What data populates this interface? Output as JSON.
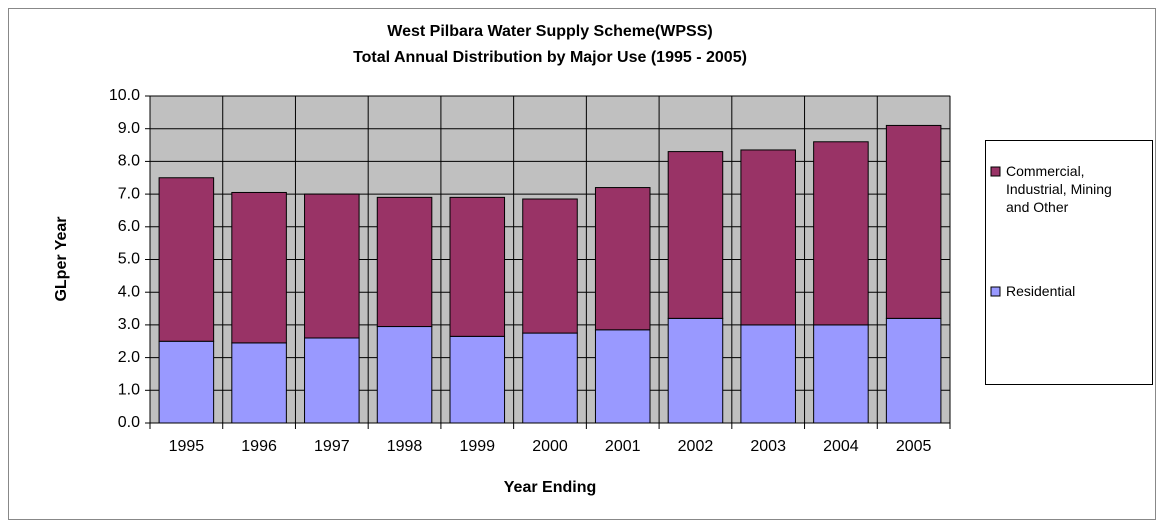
{
  "chart_data": {
    "type": "stacked_bar",
    "title": "West Pilbara Water Supply Scheme(WPSS)",
    "subtitle": "Total Annual Distribution by Major Use (1995 - 2005)",
    "x_label": "Year Ending",
    "y_label": "GLper Year",
    "categories": [
      "1995",
      "1996",
      "1997",
      "1998",
      "1999",
      "2000",
      "2001",
      "2002",
      "2003",
      "2004",
      "2005"
    ],
    "series": [
      {
        "name": "Residential",
        "color": "#9999ff",
        "values": [
          2.5,
          2.45,
          2.6,
          2.95,
          2.65,
          2.75,
          2.85,
          3.2,
          3.0,
          3.0,
          3.2
        ]
      },
      {
        "name": "Commercial, Industrial, Mining and Other",
        "color": "#993366",
        "values": [
          5.0,
          4.6,
          4.4,
          3.95,
          4.25,
          4.1,
          4.35,
          5.1,
          5.35,
          5.6,
          5.9
        ]
      }
    ],
    "ylim": [
      0,
      10
    ],
    "yticks": [
      {
        "value": 0,
        "label": "0.0"
      },
      {
        "value": 1,
        "label": "1.0"
      },
      {
        "value": 2,
        "label": "2.0"
      },
      {
        "value": 3,
        "label": "3.0"
      },
      {
        "value": 4,
        "label": "4.0"
      },
      {
        "value": 5,
        "label": "5.0"
      },
      {
        "value": 6,
        "label": "6.0"
      },
      {
        "value": 7,
        "label": "7.0"
      },
      {
        "value": 8,
        "label": "8.0"
      },
      {
        "value": 9,
        "label": "9.0"
      },
      {
        "value": 10,
        "label": "10.0"
      }
    ],
    "grid": true,
    "legend": "right"
  }
}
